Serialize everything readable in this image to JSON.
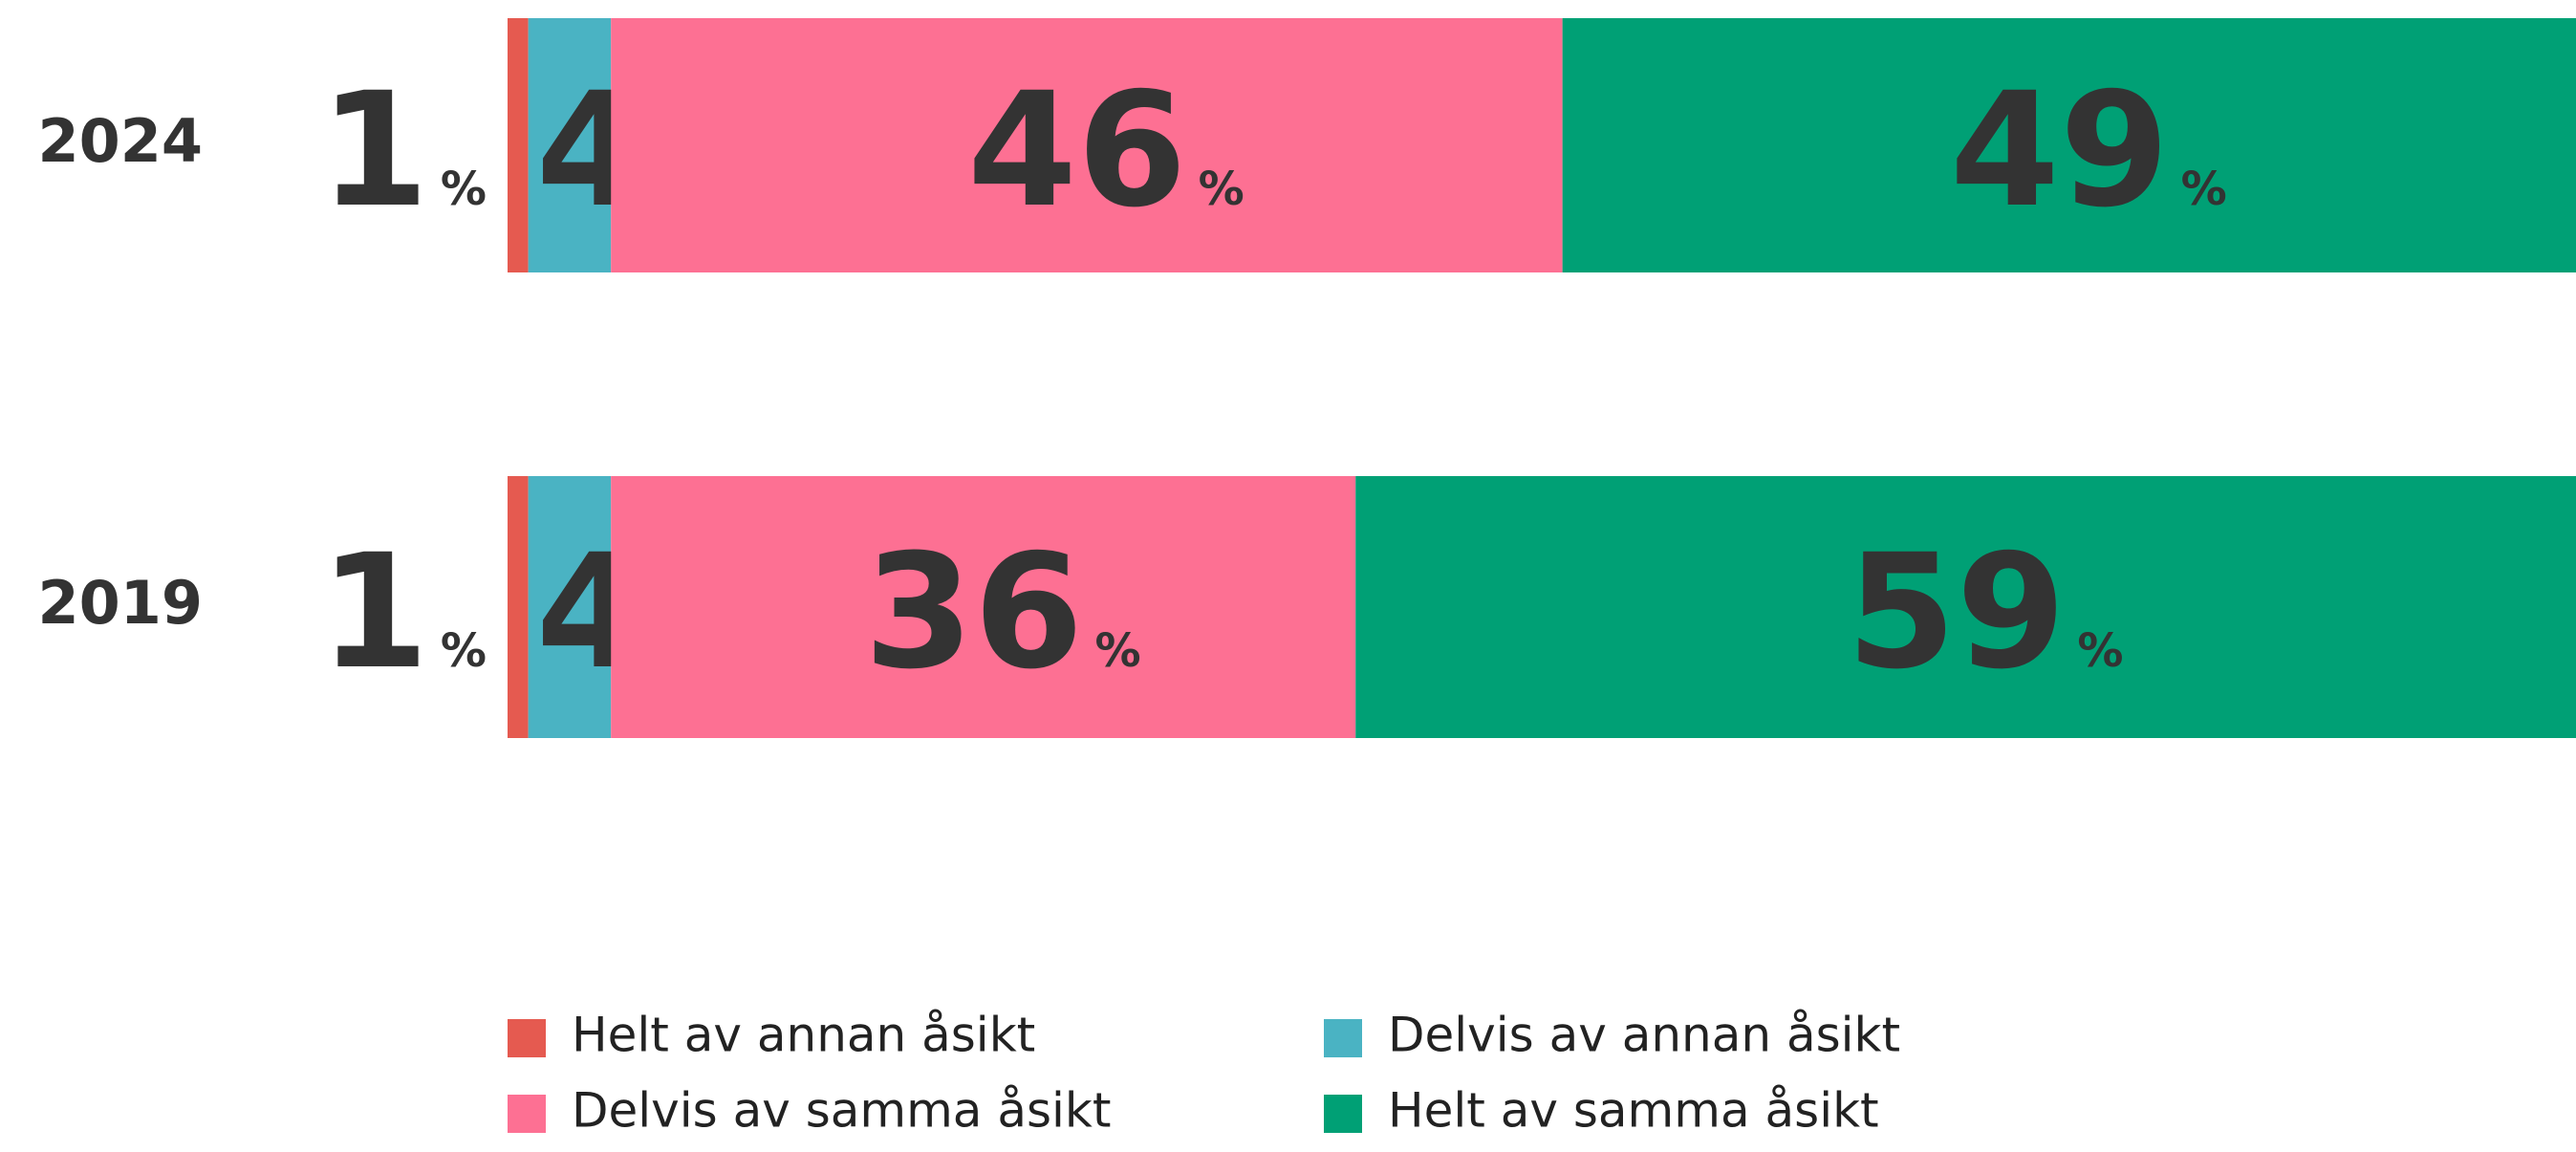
{
  "chart_data": {
    "type": "stacked-bar-100",
    "categories": [
      "2024",
      "2019"
    ],
    "unit": "%",
    "xlim": [
      0,
      100
    ],
    "series": [
      {
        "name": "Helt av annan åsikt",
        "color": "#e55a50",
        "values": [
          1,
          1
        ]
      },
      {
        "name": "Delvis av annan åsikt",
        "color": "#4ab3c3",
        "values": [
          4,
          4
        ]
      },
      {
        "name": "Delvis av samma åsikt",
        "color": "#fd7093",
        "values": [
          46,
          36
        ]
      },
      {
        "name": "Helt av samma åsikt",
        "color": "#00a075",
        "values": [
          49,
          59
        ]
      }
    ]
  }
}
